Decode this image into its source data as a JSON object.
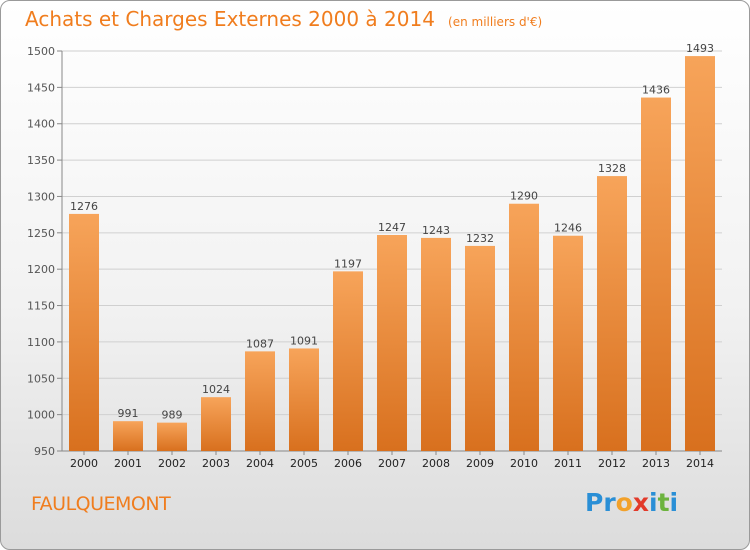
{
  "header": {
    "title": "Achats et Charges Externes 2000 à 2014",
    "subtitle": "(en milliers d'€)"
  },
  "footer": {
    "place": "FAULQUEMONT",
    "logo_letters": [
      {
        "char": "P",
        "color": "#2a8fd6"
      },
      {
        "char": "r",
        "color": "#2a8fd6"
      },
      {
        "char": "o",
        "color": "#f2a12a"
      },
      {
        "char": "x",
        "color": "#e23a2a"
      },
      {
        "char": "i",
        "color": "#2a8fd6"
      },
      {
        "char": "t",
        "color": "#6cb33e"
      },
      {
        "char": "i",
        "color": "#2a8fd6"
      }
    ]
  },
  "chart_data": {
    "type": "bar",
    "categories": [
      "2000",
      "2001",
      "2002",
      "2003",
      "2004",
      "2005",
      "2006",
      "2007",
      "2008",
      "2009",
      "2010",
      "2011",
      "2012",
      "2013",
      "2014"
    ],
    "values": [
      1276,
      991,
      989,
      1024,
      1087,
      1091,
      1197,
      1247,
      1243,
      1232,
      1290,
      1246,
      1328,
      1436,
      1493
    ],
    "title": "Achats et Charges Externes 2000 à 2014",
    "ylim": [
      950,
      1500
    ],
    "yticks": [
      950,
      1000,
      1050,
      1100,
      1150,
      1200,
      1250,
      1300,
      1350,
      1400,
      1450,
      1500
    ],
    "grid": true,
    "bar_color_light": "#f7a45a",
    "bar_color_dark": "#d8701e"
  }
}
